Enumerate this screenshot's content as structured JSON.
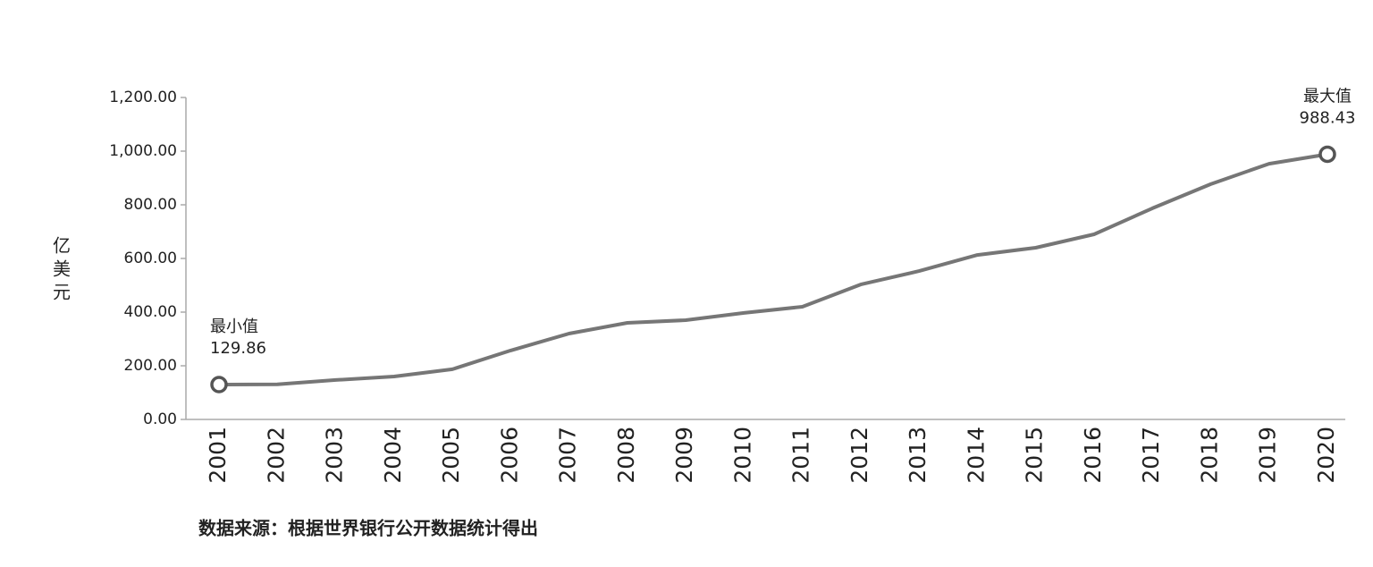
{
  "chart_data": {
    "type": "line",
    "y_label": "亿美元",
    "source": "数据来源：根据世界银行公开数据统计得出",
    "min_label": "最小值",
    "max_label": "最大值",
    "categories": [
      "2001",
      "2002",
      "2003",
      "2004",
      "2005",
      "2006",
      "2007",
      "2008",
      "2009",
      "2010",
      "2011",
      "2012",
      "2013",
      "2014",
      "2015",
      "2016",
      "2017",
      "2018",
      "2019",
      "2020"
    ],
    "values": [
      129.86,
      131,
      147,
      160,
      187,
      257,
      320,
      360,
      370,
      397,
      420,
      503,
      553,
      613,
      640,
      690,
      787,
      877,
      953,
      988.43
    ],
    "color": "#767676",
    "ylim": [
      0,
      1200
    ],
    "yticks": [
      {
        "value": 0,
        "label": "0.00"
      },
      {
        "value": 200,
        "label": "200.00"
      },
      {
        "value": 400,
        "label": "400.00"
      },
      {
        "value": 600,
        "label": "600.00"
      },
      {
        "value": 800,
        "label": "800.00"
      },
      {
        "value": 1000,
        "label": "1,000.00"
      },
      {
        "value": 1200,
        "label": "1,200.00"
      }
    ]
  }
}
